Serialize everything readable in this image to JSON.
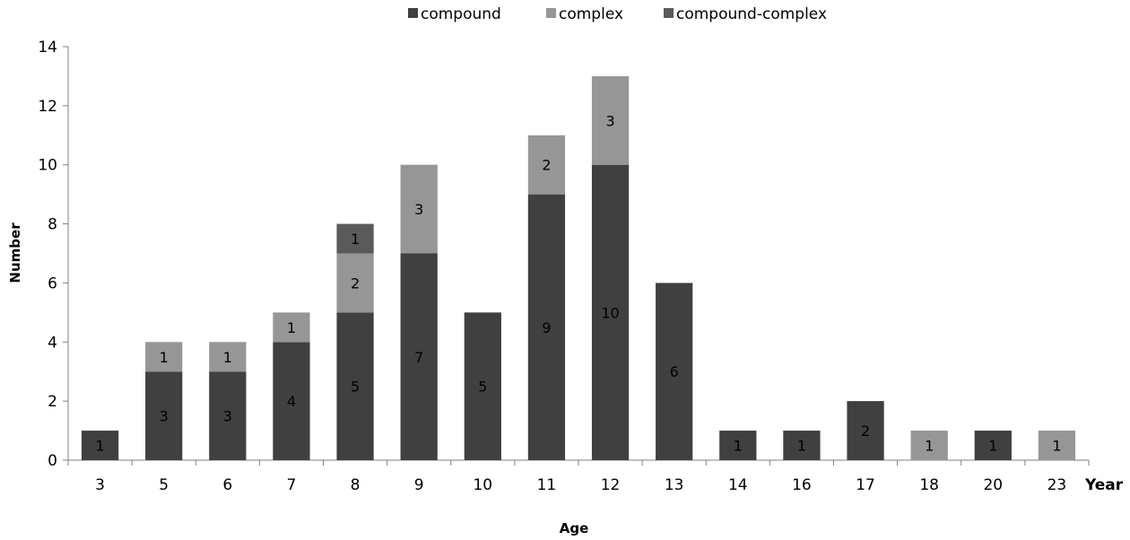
{
  "chart_data": {
    "type": "bar",
    "stacked": true,
    "categories": [
      "3",
      "5",
      "6",
      "7",
      "8",
      "9",
      "10",
      "11",
      "12",
      "13",
      "14",
      "16",
      "17",
      "18",
      "20",
      "23"
    ],
    "series": [
      {
        "name": "compound",
        "color": "#404040",
        "values": [
          1,
          3,
          3,
          4,
          5,
          7,
          5,
          9,
          10,
          6,
          1,
          1,
          2,
          0,
          1,
          0
        ]
      },
      {
        "name": "complex",
        "color": "#969696",
        "values": [
          0,
          1,
          1,
          1,
          2,
          3,
          0,
          2,
          3,
          0,
          0,
          0,
          0,
          1,
          0,
          1
        ]
      },
      {
        "name": "compound-complex",
        "color": "#5a5a5a",
        "values": [
          0,
          0,
          0,
          0,
          1,
          0,
          0,
          0,
          0,
          0,
          0,
          0,
          0,
          0,
          0,
          0
        ]
      }
    ],
    "xlabel": "Age",
    "x_unit": "Year",
    "ylabel": "Number",
    "ylim": [
      0,
      14
    ],
    "yticks": [
      0,
      2,
      4,
      6,
      8,
      10,
      12,
      14
    ],
    "legend_position": "top",
    "grid": false,
    "data_labels": true
  }
}
